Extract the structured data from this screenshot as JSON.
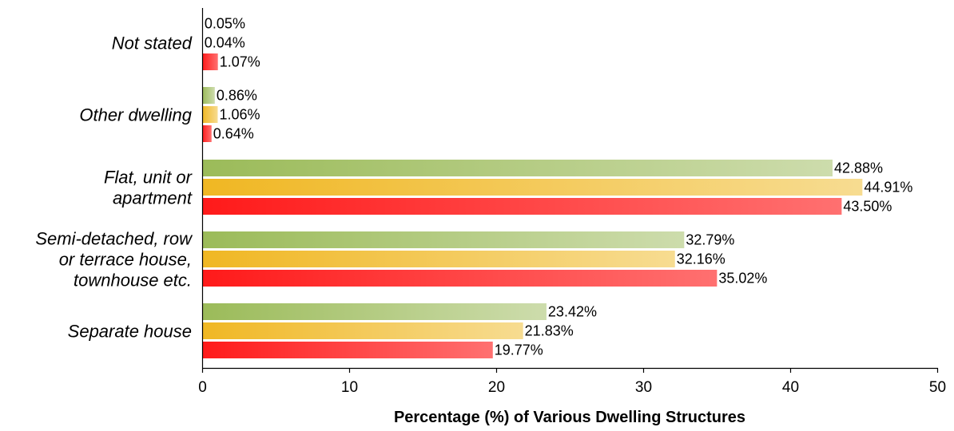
{
  "chart_data": {
    "type": "bar",
    "orientation": "horizontal",
    "xlabel": "Percentage (%) of Various Dwelling Structures",
    "xlim": [
      0,
      50
    ],
    "xticks": [
      "0",
      "10",
      "20",
      "30",
      "40",
      "50"
    ],
    "grid": false,
    "legend": "none",
    "categories": [
      "Not stated",
      "Other dwelling",
      "Flat, unit or apartment",
      "Semi-detached, row or terrace house, townhouse etc.",
      "Separate house"
    ],
    "category_lines": [
      [
        "Not stated"
      ],
      [
        "Other dwelling"
      ],
      [
        "Flat, unit or",
        "apartment"
      ],
      [
        "Semi-detached, row",
        "or terrace house,",
        "townhouse etc."
      ],
      [
        "Separate house"
      ]
    ],
    "series": [
      {
        "color": "#9bbb59",
        "values": [
          0.05,
          0.86,
          42.88,
          32.79,
          23.42
        ],
        "labels": [
          "0.05%",
          "0.86%",
          "42.88%",
          "32.79%",
          "23.42%"
        ]
      },
      {
        "color": "#f0b723",
        "values": [
          0.04,
          1.06,
          44.91,
          32.16,
          21.83
        ],
        "labels": [
          "0.04%",
          "1.06%",
          "44.91%",
          "32.16%",
          "21.83%"
        ]
      },
      {
        "color": "#ff1a1a",
        "values": [
          1.07,
          0.64,
          43.5,
          35.02,
          19.77
        ],
        "labels": [
          "1.07%",
          "0.64%",
          "43.50%",
          "35.02%",
          "19.77%"
        ]
      }
    ]
  }
}
